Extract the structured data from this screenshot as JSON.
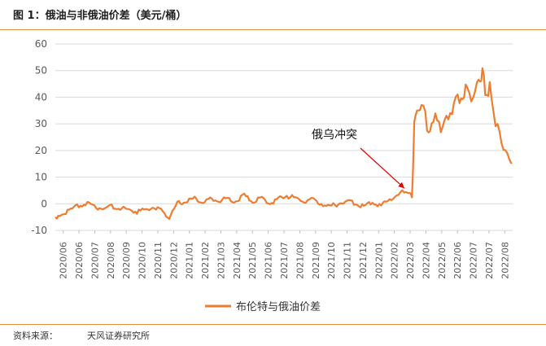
{
  "figure": {
    "title": "图 1：俄油与非俄油价差（美元/桶）",
    "source_label": "资料来源：",
    "source_value": "天风证券研究所"
  },
  "chart_data": {
    "type": "line",
    "ylim": [
      -10,
      60
    ],
    "yticks": [
      -10,
      0,
      10,
      20,
      30,
      40,
      50,
      60
    ],
    "x_tick_labels": [
      "2020/06",
      "2020/06",
      "2020/07",
      "2020/08",
      "2020/09",
      "2020/10",
      "2020/11",
      "2020/12",
      "2021/01",
      "2021/02",
      "2021/03",
      "2021/04",
      "2021/05",
      "2021/06",
      "2021/07",
      "2021/08",
      "2021/09",
      "2021/10",
      "2021/11",
      "2021/12",
      "2022/01",
      "2022/02",
      "2022/03",
      "2022/04",
      "2022/05",
      "2022/06",
      "2022/07",
      "2022/07",
      "2022/08"
    ],
    "grid": "horizontal",
    "legend_position": "bottom",
    "series": [
      {
        "name": "布伦特与俄油价差",
        "color": "#ED7D31",
        "x": [
          "2020/06/01",
          "2020/06/20",
          "2020/07/10",
          "2020/07/25",
          "2020/08/10",
          "2020/08/25",
          "2020/09/10",
          "2020/09/25",
          "2020/10/10",
          "2020/10/25",
          "2020/11/10",
          "2020/11/25",
          "2020/12/10",
          "2020/12/22",
          "2021/01/05",
          "2021/01/20",
          "2021/02/05",
          "2021/02/20",
          "2021/03/05",
          "2021/03/20",
          "2021/04/05",
          "2021/04/20",
          "2021/05/05",
          "2021/05/20",
          "2021/06/05",
          "2021/06/20",
          "2021/07/05",
          "2021/07/20",
          "2021/08/05",
          "2021/08/20",
          "2021/09/05",
          "2021/09/20",
          "2021/10/05",
          "2021/10/20",
          "2021/11/05",
          "2021/11/20",
          "2021/12/05",
          "2021/12/20",
          "2022/01/05",
          "2022/01/20",
          "2022/02/05",
          "2022/02/15",
          "2022/02/24",
          "2022/03/01",
          "2022/03/05",
          "2022/03/10",
          "2022/03/18",
          "2022/03/28",
          "2022/04/05",
          "2022/04/15",
          "2022/04/25",
          "2022/05/05",
          "2022/05/15",
          "2022/05/25",
          "2022/06/05",
          "2022/06/15",
          "2022/06/25",
          "2022/07/01",
          "2022/07/05",
          "2022/07/10",
          "2022/07/18",
          "2022/07/25",
          "2022/08/01",
          "2022/08/08",
          "2022/08/15",
          "2022/08/22",
          "2022/08/26"
        ],
        "values": [
          -5,
          -3,
          -1,
          0,
          -1,
          -2,
          -1,
          -2,
          -2,
          -3,
          -2,
          -1,
          -3,
          -5,
          0,
          1,
          2,
          1,
          2,
          1,
          2,
          1,
          3,
          1,
          2,
          0,
          2,
          3,
          2,
          1,
          2,
          0,
          -1,
          0,
          1,
          0,
          -1,
          1,
          -1,
          2,
          3,
          5,
          4,
          3,
          28,
          35,
          37,
          30,
          28,
          33,
          27,
          33,
          37,
          40,
          43,
          40,
          44,
          47,
          50,
          42,
          43,
          35,
          28,
          25,
          20,
          17,
          15
        ]
      }
    ],
    "annotation": {
      "text": "俄乌冲突",
      "target_x": "2022/02/24",
      "target_y": 4
    }
  }
}
